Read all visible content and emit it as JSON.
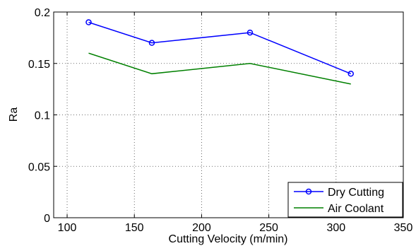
{
  "chart_data": {
    "type": "line",
    "xlabel": "Cutting Velocity (m/min)",
    "ylabel": "Ra",
    "xlim": [
      90,
      350
    ],
    "ylim": [
      0,
      0.2
    ],
    "xticks": [
      "100",
      "150",
      "200",
      "250",
      "300",
      "350"
    ],
    "yticks": [
      "0",
      "0.05",
      "0.1",
      "0.15",
      "0.2"
    ],
    "grid": true,
    "legend_position": "bottom-right",
    "series": [
      {
        "name": "Dry Cutting",
        "color": "#0000ff",
        "marker": "circle",
        "x": [
          116,
          163,
          236,
          311
        ],
        "y": [
          0.19,
          0.17,
          0.18,
          0.14
        ]
      },
      {
        "name": "Air Coolant",
        "color": "#008000",
        "marker": "none",
        "x": [
          116,
          163,
          236,
          311
        ],
        "y": [
          0.16,
          0.14,
          0.15,
          0.13
        ]
      }
    ]
  }
}
